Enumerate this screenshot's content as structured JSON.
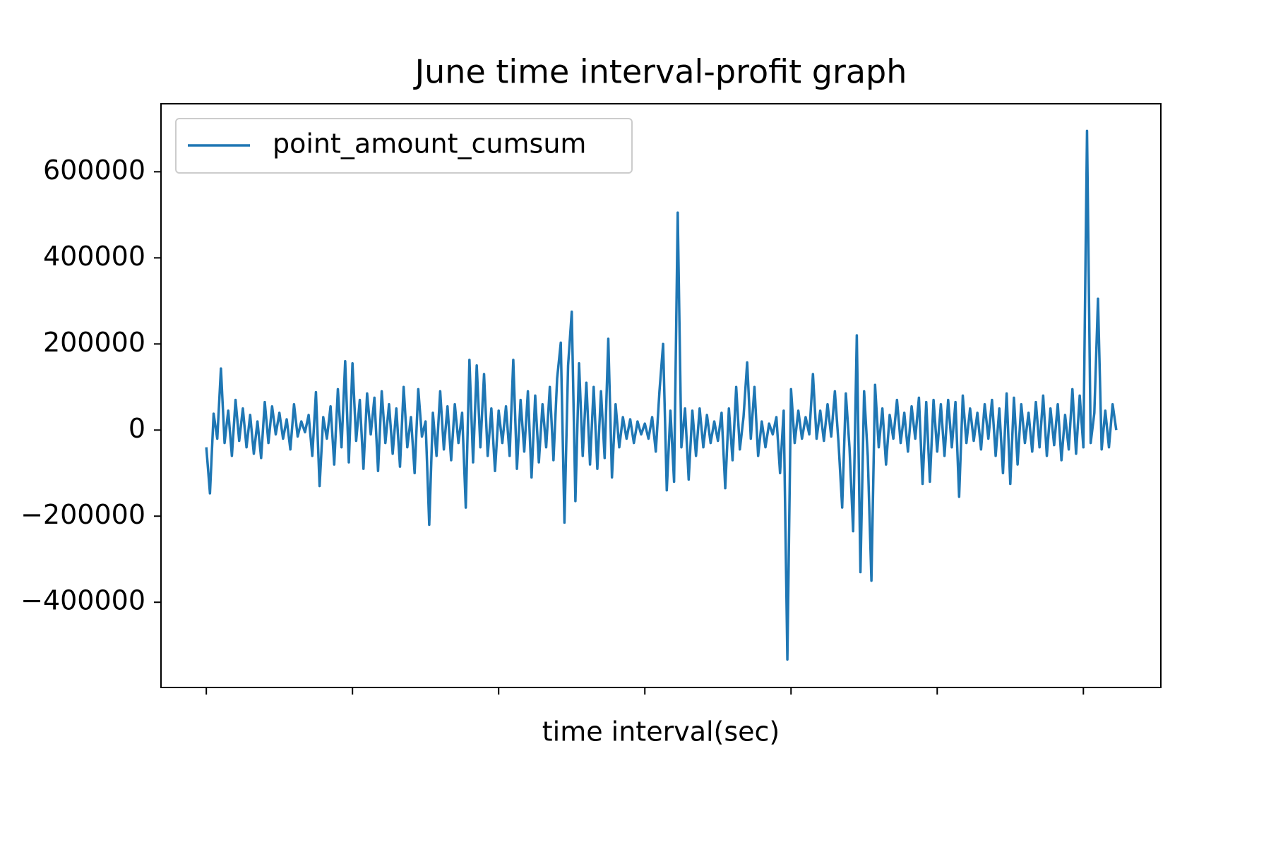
{
  "chart_data": {
    "type": "line",
    "title": "June time interval-profit graph",
    "x_label": "time interval(sec)",
    "x": [
      0,
      1,
      2,
      3,
      4,
      5,
      6,
      7,
      8,
      9,
      10,
      11,
      12,
      13,
      14,
      15,
      16,
      17,
      18,
      19,
      20,
      21,
      22,
      23,
      24,
      25,
      26,
      27,
      28,
      29,
      30,
      31,
      32,
      33,
      34,
      35,
      36,
      37,
      38,
      39,
      40,
      41,
      42,
      43,
      44,
      45,
      46,
      47,
      48,
      49,
      50,
      51,
      52,
      53,
      54,
      55,
      56,
      57,
      58,
      59,
      60,
      61,
      62,
      63,
      64,
      65,
      66,
      67,
      68,
      69,
      70,
      71,
      72,
      73,
      74,
      75,
      76,
      77,
      78,
      79,
      80,
      81,
      82,
      83,
      84,
      85,
      86,
      87,
      88,
      89,
      90,
      91,
      92,
      93,
      94,
      95,
      96,
      97,
      98,
      99,
      100,
      101,
      102,
      103,
      104,
      105,
      106,
      107,
      108,
      109,
      110,
      111,
      112,
      113,
      114,
      115,
      116,
      117,
      118,
      119,
      120,
      121,
      122,
      123,
      124,
      125,
      126,
      127,
      128,
      129,
      130,
      131,
      132,
      133,
      134,
      135,
      136,
      137,
      138,
      139,
      140,
      141,
      142,
      143,
      144,
      145,
      146,
      147,
      148,
      149,
      150,
      151,
      152,
      153,
      154,
      155,
      156,
      157,
      158,
      159,
      160,
      161,
      162,
      163,
      164,
      165,
      166,
      167,
      168,
      169,
      170,
      171,
      172,
      173,
      174,
      175,
      176,
      177,
      178,
      179,
      180,
      181,
      182,
      183,
      184,
      185,
      186,
      187,
      188,
      189,
      190,
      191,
      192,
      193,
      194,
      195,
      196,
      197,
      198,
      199,
      200,
      201,
      202,
      203,
      204,
      205,
      206,
      207,
      208,
      209,
      210,
      211,
      212,
      213,
      214,
      215,
      216,
      217,
      218,
      219,
      220,
      221,
      222,
      223,
      224,
      225,
      226,
      227,
      228,
      229,
      230,
      231,
      232,
      233,
      234,
      235,
      236,
      237,
      238,
      239,
      240,
      241,
      242,
      243,
      244,
      245,
      246,
      247,
      248,
      249
    ],
    "series": [
      {
        "name": "point_amount_cumsum",
        "color": "#1f77b4",
        "values": [
          -40000,
          -147000,
          38000,
          -20000,
          143000,
          -30000,
          45000,
          -60000,
          70000,
          -25000,
          50000,
          -40000,
          35000,
          -55000,
          20000,
          -65000,
          65000,
          -30000,
          55000,
          -10000,
          40000,
          -20000,
          25000,
          -45000,
          60000,
          -15000,
          20000,
          -5000,
          35000,
          -60000,
          88000,
          -130000,
          30000,
          -20000,
          55000,
          -80000,
          95000,
          -40000,
          160000,
          -75000,
          155000,
          -25000,
          70000,
          -90000,
          85000,
          -10000,
          75000,
          -95000,
          90000,
          -30000,
          60000,
          -55000,
          50000,
          -85000,
          100000,
          -40000,
          30000,
          -100000,
          95000,
          -15000,
          20000,
          -220000,
          40000,
          -60000,
          90000,
          -45000,
          55000,
          -70000,
          60000,
          -30000,
          40000,
          -180000,
          163000,
          -75000,
          150000,
          -40000,
          130000,
          -60000,
          50000,
          -95000,
          45000,
          -30000,
          55000,
          -60000,
          163000,
          -90000,
          70000,
          -50000,
          90000,
          -110000,
          80000,
          -75000,
          60000,
          -40000,
          100000,
          -70000,
          120000,
          203000,
          -215000,
          150000,
          275000,
          -165000,
          155000,
          -60000,
          110000,
          -80000,
          100000,
          -90000,
          90000,
          -65000,
          212000,
          -110000,
          60000,
          -40000,
          30000,
          -20000,
          25000,
          -30000,
          20000,
          -10000,
          15000,
          -20000,
          30000,
          -50000,
          90000,
          200000,
          -140000,
          45000,
          -120000,
          505000,
          -40000,
          50000,
          -115000,
          45000,
          -60000,
          50000,
          -40000,
          35000,
          -30000,
          20000,
          -25000,
          40000,
          -135000,
          50000,
          -70000,
          100000,
          -45000,
          30000,
          157000,
          -20000,
          100000,
          -60000,
          20000,
          -40000,
          15000,
          -10000,
          30000,
          -100000,
          45000,
          -533000,
          95000,
          -30000,
          45000,
          -20000,
          30000,
          -10000,
          130000,
          -20000,
          45000,
          -25000,
          60000,
          -15000,
          90000,
          -30000,
          -180000,
          85000,
          -40000,
          -235000,
          220000,
          -330000,
          90000,
          -60000,
          -350000,
          105000,
          -40000,
          50000,
          -80000,
          35000,
          -20000,
          70000,
          -30000,
          40000,
          -50000,
          55000,
          -20000,
          75000,
          -125000,
          65000,
          -120000,
          70000,
          -50000,
          60000,
          -60000,
          70000,
          -40000,
          65000,
          -155000,
          80000,
          -30000,
          50000,
          -25000,
          40000,
          -45000,
          60000,
          -20000,
          70000,
          -60000,
          50000,
          -100000,
          85000,
          -125000,
          75000,
          -80000,
          60000,
          -30000,
          40000,
          -50000,
          65000,
          -40000,
          80000,
          -60000,
          50000,
          -35000,
          60000,
          -70000,
          35000,
          -45000,
          95000,
          -55000,
          80000,
          -40000,
          695000,
          -30000,
          40000,
          305000,
          -45000,
          45000,
          -40000,
          60000,
          0
        ]
      }
    ],
    "xlim": [
      -12.4,
      261.2
    ],
    "xticks": [
      0,
      40,
      80,
      120,
      160,
      200,
      240
    ],
    "ylim": [
      -598000,
      758000
    ],
    "yticks": [
      {
        "value": -400000,
        "label": "−400000"
      },
      {
        "value": -200000,
        "label": "−200000"
      },
      0,
      200000,
      400000,
      600000
    ],
    "legend": "upper left",
    "grid": false
  }
}
